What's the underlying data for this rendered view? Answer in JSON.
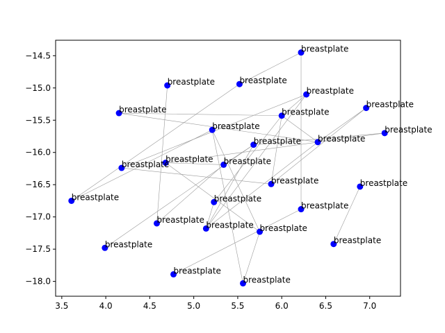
{
  "chart_data": {
    "type": "scatter",
    "title": "",
    "xlabel": "",
    "ylabel": "",
    "xlim": [
      3.43,
      7.35
    ],
    "ylim": [
      -18.23,
      -14.26
    ],
    "xticks": [
      3.5,
      4.0,
      4.5,
      5.0,
      5.5,
      6.0,
      6.5,
      7.0
    ],
    "xtick_labels": [
      "3.5",
      "4.0",
      "4.5",
      "5.0",
      "5.5",
      "6.0",
      "6.5",
      "7.0"
    ],
    "yticks": [
      -14.5,
      -15.0,
      -15.5,
      -16.0,
      -16.5,
      -17.0,
      -17.5,
      -18.0
    ],
    "ytick_labels": [
      "−14.5",
      "−15.0",
      "−15.5",
      "−16.0",
      "−16.5",
      "−17.0",
      "−17.5",
      "−18.0"
    ],
    "grid": false,
    "point_color": "#0000ff",
    "edge_color": "#999999",
    "points": [
      {
        "x": 6.22,
        "y": -14.45,
        "label": "breastplate"
      },
      {
        "x": 4.7,
        "y": -14.96,
        "label": "breastplate"
      },
      {
        "x": 5.52,
        "y": -14.94,
        "label": "breastplate"
      },
      {
        "x": 6.28,
        "y": -15.1,
        "label": "breastplate"
      },
      {
        "x": 6.96,
        "y": -15.31,
        "label": "breastplate"
      },
      {
        "x": 4.15,
        "y": -15.39,
        "label": "breastplate"
      },
      {
        "x": 6.0,
        "y": -15.43,
        "label": "breastplate"
      },
      {
        "x": 5.21,
        "y": -15.65,
        "label": "breastplate"
      },
      {
        "x": 7.17,
        "y": -15.7,
        "label": "breastplate"
      },
      {
        "x": 6.41,
        "y": -15.84,
        "label": "breastplate"
      },
      {
        "x": 5.68,
        "y": -15.88,
        "label": "breastplate"
      },
      {
        "x": 4.68,
        "y": -16.16,
        "label": "breastplate"
      },
      {
        "x": 5.34,
        "y": -16.19,
        "label": "breastplate"
      },
      {
        "x": 4.18,
        "y": -16.24,
        "label": "breastplate"
      },
      {
        "x": 5.88,
        "y": -16.49,
        "label": "breastplate"
      },
      {
        "x": 6.89,
        "y": -16.53,
        "label": "breastplate"
      },
      {
        "x": 3.61,
        "y": -16.75,
        "label": "breastplate"
      },
      {
        "x": 5.23,
        "y": -16.77,
        "label": "breastplate"
      },
      {
        "x": 6.22,
        "y": -16.88,
        "label": "breastplate"
      },
      {
        "x": 4.58,
        "y": -17.1,
        "label": "breastplate"
      },
      {
        "x": 5.14,
        "y": -17.18,
        "label": "breastplate"
      },
      {
        "x": 5.75,
        "y": -17.23,
        "label": "breastplate"
      },
      {
        "x": 6.59,
        "y": -17.42,
        "label": "breastplate"
      },
      {
        "x": 3.99,
        "y": -17.48,
        "label": "breastplate"
      },
      {
        "x": 4.77,
        "y": -17.89,
        "label": "breastplate"
      },
      {
        "x": 5.56,
        "y": -18.03,
        "label": "breastplate"
      }
    ],
    "edges": [
      [
        16,
        2
      ],
      [
        16,
        7
      ],
      [
        0,
        2
      ],
      [
        0,
        18
      ],
      [
        1,
        19
      ],
      [
        5,
        6
      ],
      [
        5,
        9
      ],
      [
        6,
        9
      ],
      [
        6,
        3
      ],
      [
        6,
        14
      ],
      [
        6,
        17
      ],
      [
        3,
        20
      ],
      [
        3,
        13
      ],
      [
        4,
        9
      ],
      [
        4,
        14
      ],
      [
        8,
        10
      ],
      [
        8,
        11
      ],
      [
        10,
        12
      ],
      [
        10,
        23
      ],
      [
        10,
        20
      ],
      [
        7,
        25
      ],
      [
        7,
        21
      ],
      [
        12,
        19
      ],
      [
        12,
        11
      ],
      [
        13,
        14
      ],
      [
        11,
        21
      ],
      [
        15,
        22
      ],
      [
        17,
        20
      ],
      [
        9,
        20
      ],
      [
        18,
        24
      ],
      [
        21,
        25
      ]
    ]
  }
}
